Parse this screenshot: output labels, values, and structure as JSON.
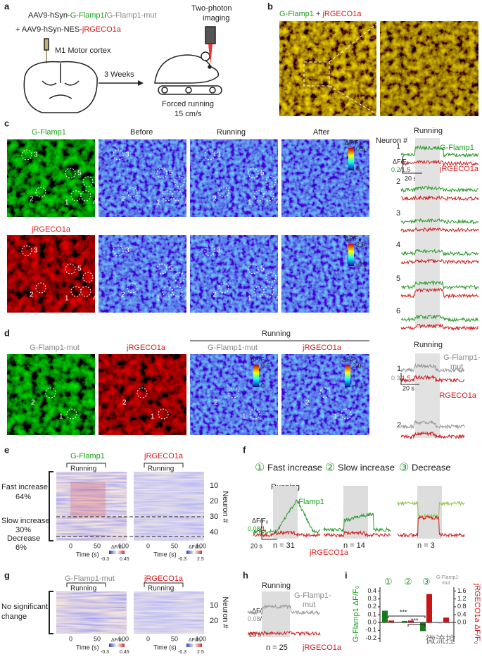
{
  "panels": {
    "a": {
      "letter": "a",
      "vector1": [
        "AAV9-hSyn-",
        "G-Flamp1",
        "/",
        "G-Flamp1-mut"
      ],
      "vector2": [
        "+ AAV9-hSyn-NES-",
        "jRGECO1a"
      ],
      "site": "M1 Motor cortex",
      "time": "3 Weeks",
      "imaging": [
        "Two-photon",
        "imaging"
      ],
      "running": [
        "Forced running",
        "15 cm/s"
      ]
    },
    "b": {
      "letter": "b",
      "title": [
        "G-Flamp1",
        " + ",
        "jRGECO1a"
      ]
    },
    "c": {
      "letter": "c",
      "columns": [
        "G-Flamp1",
        "Before",
        "Running",
        "After"
      ],
      "row2": "jRGECO1a",
      "cbar_label": "ΔF/F₀",
      "cbar1": [
        "0.5",
        "0"
      ],
      "cbar2": [
        "2.0",
        "-0.1"
      ],
      "roi_labels": [
        "3",
        "5",
        "6",
        "2",
        "1",
        "4"
      ],
      "neuron_header": "Neuron #",
      "trace_title": "Running",
      "neurons": [
        "1",
        "2",
        "3",
        "4",
        "5",
        "6"
      ],
      "legend_green": "G-Flamp1",
      "legend_red": "jRGECO1a",
      "scale_green": "0.2",
      "scale_sep": "/",
      "scale_red": "1.5",
      "scale_time": "20 s"
    },
    "d": {
      "letter": "d",
      "columns": [
        "G-Flamp1-mut",
        "jRGECO1a",
        "G-Flamp1-mut",
        "jRGECO1a"
      ],
      "running": "Running",
      "cbar1": [
        "0.5",
        "0"
      ],
      "cbar2": [
        "2.0",
        "-0.1"
      ],
      "roi_labels": [
        "2",
        "1"
      ],
      "trace_title": "Running",
      "neurons": [
        "1",
        "2"
      ],
      "legend_gray": [
        "G-Flamp1-",
        "mut"
      ],
      "legend_red": "jRGECO1a",
      "scale_gray": "0.3",
      "scale_red": "1.5",
      "scale_time": "20 s"
    },
    "e": {
      "letter": "e",
      "titles": [
        "G-Flamp1",
        "jRGECO1a"
      ],
      "running": "Running",
      "groups": [
        [
          "Fast increase",
          "64%"
        ],
        [
          "Slow increase",
          "30%"
        ],
        [
          "Decrease",
          "6%"
        ]
      ],
      "xticks": [
        "0",
        "50",
        "100"
      ],
      "xlabel": "Time (s)",
      "neuron_ticks": [
        "10",
        "20",
        "30",
        "40"
      ],
      "neuron_label": "Neuron #",
      "cbar1": [
        "-0.3",
        "0.45"
      ],
      "cbar2": [
        "-0.3",
        "2.5"
      ]
    },
    "f": {
      "letter": "f",
      "groups": [
        [
          "①",
          "Fast increase"
        ],
        [
          "②",
          "Slow increase"
        ],
        [
          "③",
          "Decrease"
        ]
      ],
      "running": "Running",
      "scale_green": "0.08",
      "scale_red": "1",
      "scale_time": "20 s",
      "legend_green": "G-Flamp1",
      "legend_red": "jRGECO1a",
      "n": [
        "n = 31",
        "n = 14",
        "n = 3"
      ]
    },
    "g": {
      "letter": "g",
      "titles": [
        "G-Flamp1-mut",
        "jRGECO1a"
      ],
      "running": "Running",
      "note": [
        "No significant",
        "change"
      ],
      "xticks": [
        "0",
        "50",
        "100"
      ],
      "xlabel": "Time (s)",
      "neuron_ticks": [
        "10",
        "20"
      ],
      "cbar1": [
        "-0.3",
        "0.45"
      ],
      "cbar2": [
        "-0.3",
        "2.5"
      ]
    },
    "h": {
      "letter": "h",
      "running": "Running",
      "legend_gray": [
        "G-Flamp1-",
        "mut"
      ],
      "scale_gray": "0.08",
      "scale_red": "1",
      "scale_time": "20 s",
      "n": "n = 25",
      "legend_red": "jRGECO1a"
    },
    "i": {
      "letter": "i",
      "group_marks": [
        "①",
        "②",
        "③"
      ],
      "mut_label": [
        "G-Flamp1-",
        "mut"
      ],
      "sig": [
        "***",
        "***"
      ],
      "ylabel": "G-Flamp1 ΔF/F₀",
      "y2label": "jRGECO1a ΔF/F₀",
      "ylim": [
        -0.25,
        0.45
      ],
      "yticks": [
        0.4,
        0.3,
        0.2,
        0.1,
        {
          "value": 0,
          "label": "0.0"
        },
        -0.1,
        -0.2
      ],
      "y2lim": [
        -1.0,
        1.8
      ],
      "y2ticks": [
        1.6,
        1.2,
        0.8,
        0.4,
        {
          "value": 0,
          "label": "0.0"
        }
      ],
      "green_color": "#1a7a1a",
      "red_color": "#c81414",
      "green_values": [
        0.15,
        0.02,
        -0.11,
        -0.01
      ],
      "red_values": [
        0.1,
        0.1,
        1.45,
        0.25
      ]
    },
    "watermark": "微流控"
  }
}
